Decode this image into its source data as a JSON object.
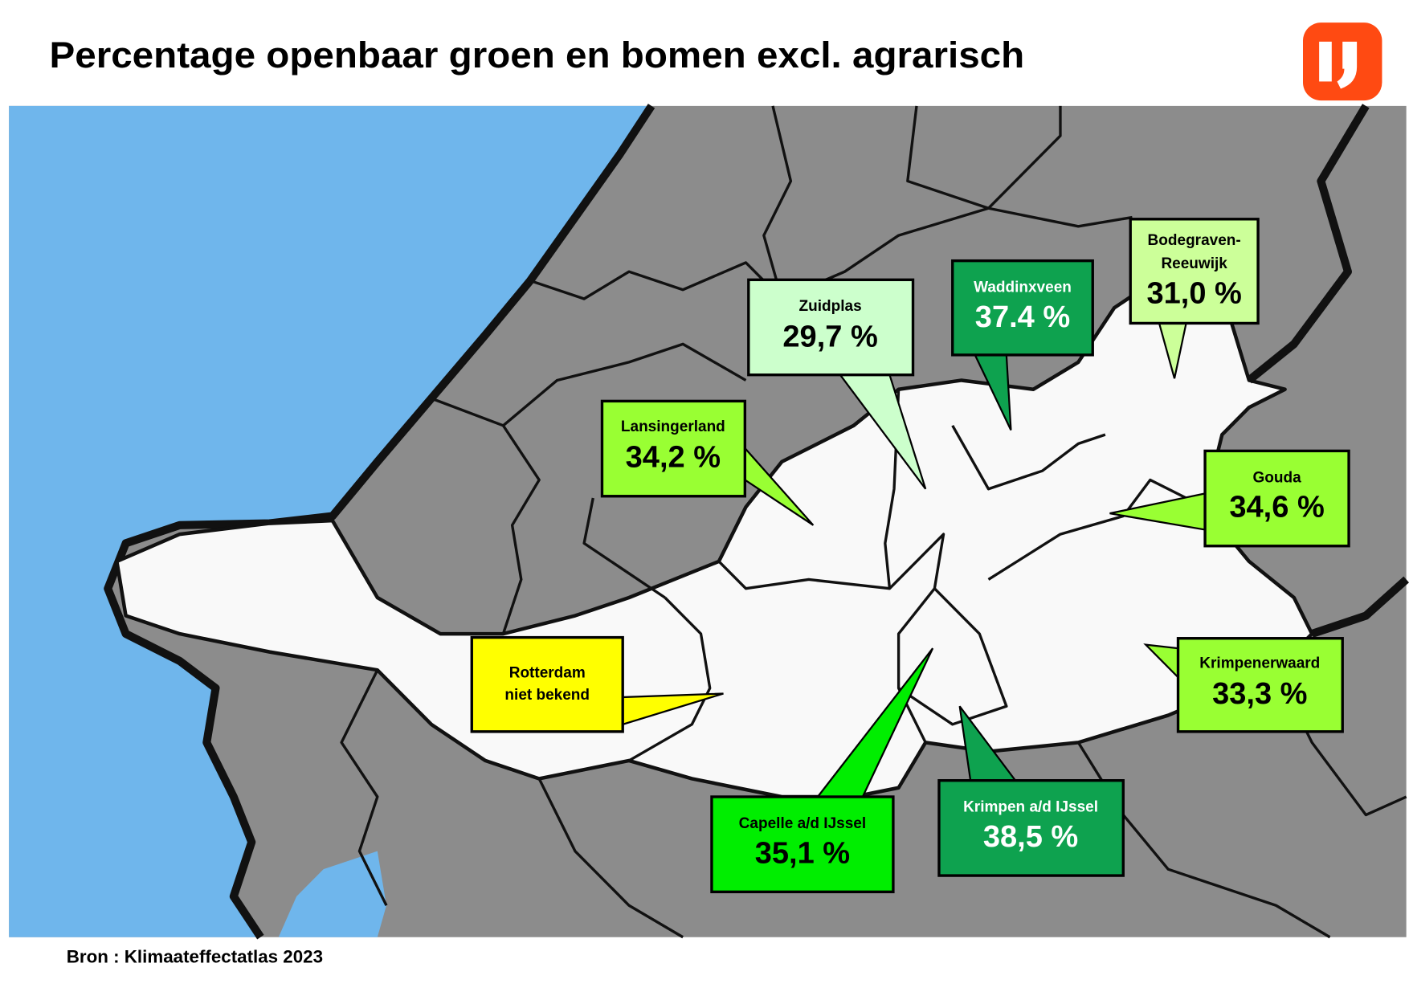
{
  "header": {
    "title": "Percentage openbaar groen en bomen excl. agrarisch"
  },
  "callouts": [
    {
      "lines": [
        "Zuidplas"
      ],
      "value": "29,7 %"
    },
    {
      "lines": [
        "Waddinxveen"
      ],
      "value": "37.4 %"
    },
    {
      "lines": [
        "Bodegraven-",
        "Reeuwijk"
      ],
      "value": "31,0 %"
    },
    {
      "lines": [
        "Lansingerland"
      ],
      "value": "34,2 %"
    },
    {
      "lines": [
        "Gouda"
      ],
      "value": "34,6 %"
    },
    {
      "lines": [
        "Krimpenerwaard"
      ],
      "value": "33,3 %"
    },
    {
      "lines": [
        "Rotterdam",
        "niet bekend"
      ]
    },
    {
      "lines": [
        "Capelle a/d IJssel"
      ],
      "value": "35,1 %"
    },
    {
      "lines": [
        "Krimpen a/d IJssel"
      ],
      "value": "38,5 %"
    }
  ],
  "footer": {
    "source": "Bron : Klimaateffectatlas 2023"
  }
}
